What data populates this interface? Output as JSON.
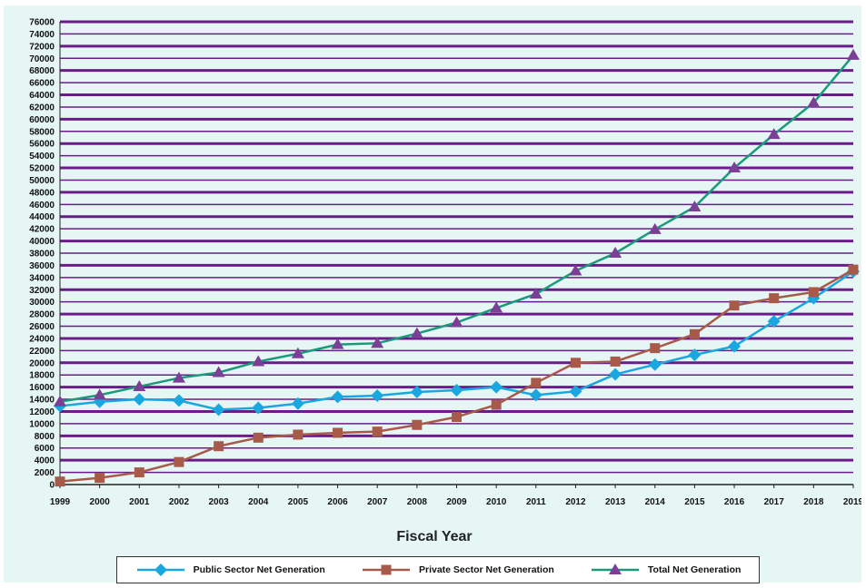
{
  "chart_data": {
    "type": "line",
    "title": "",
    "xlabel": "Fiscal Year",
    "ylabel": "",
    "ylim": [
      0,
      76000
    ],
    "ytick_step": 2000,
    "grid": "horizontal",
    "legend_position": "bottom",
    "x": [
      "1999",
      "2000",
      "2001",
      "2002",
      "2003",
      "2004",
      "2005",
      "2006",
      "2007",
      "2008",
      "2009",
      "2010",
      "2011",
      "2012",
      "2013",
      "2014",
      "2015",
      "2016",
      "2017",
      "2018",
      "2019"
    ],
    "series": [
      {
        "name": "Public Sector Net Generation",
        "color": "#1aa7e0",
        "marker": "diamond",
        "values": [
          12900,
          13600,
          14000,
          13800,
          12300,
          12600,
          13300,
          14400,
          14600,
          15200,
          15500,
          16000,
          14700,
          15300,
          18100,
          19700,
          21300,
          22700,
          26800,
          30600,
          35000
        ]
      },
      {
        "name": "Private Sector Net Generation",
        "color": "#a85a4a",
        "marker": "square",
        "values": [
          500,
          1100,
          2000,
          3700,
          6300,
          7700,
          8200,
          8500,
          8700,
          9800,
          11100,
          13100,
          16700,
          20000,
          20200,
          22400,
          24700,
          29400,
          30600,
          31600,
          35300
        ]
      },
      {
        "name": "Total Net Generation",
        "color": "#1a9a7a",
        "marker_color": "#7b3f96",
        "marker": "triangle",
        "values": [
          13600,
          14700,
          16100,
          17500,
          18400,
          20200,
          21500,
          23000,
          23200,
          24800,
          26600,
          29000,
          31300,
          35100,
          38000,
          41900,
          45600,
          52000,
          57500,
          62700,
          70500
        ]
      }
    ]
  }
}
